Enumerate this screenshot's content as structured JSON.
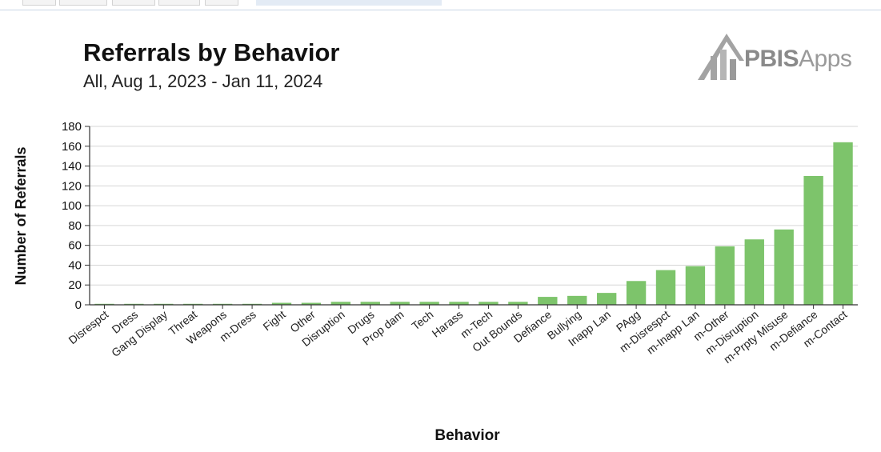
{
  "chart_data": {
    "type": "bar",
    "title": "Referrals by Behavior",
    "subtitle": "All, Aug 1, 2023 - Jan 11, 2024",
    "xlabel": "Behavior",
    "ylabel": "Number of Referrals",
    "ylim": [
      0,
      180
    ],
    "yticks": [
      0,
      20,
      40,
      60,
      80,
      100,
      120,
      140,
      160,
      180
    ],
    "grid": true,
    "bar_color": "#7dc46b",
    "categories": [
      "Disrespct",
      "Dress",
      "Gang Display",
      "Threat",
      "Weapons",
      "m-Dress",
      "Fight",
      "Other",
      "Disruption",
      "Drugs",
      "Prop dam",
      "Tech",
      "Harass",
      "m-Tech",
      "Out Bounds",
      "Defiance",
      "Bullying",
      "Inapp Lan",
      "PAgg",
      "m-Disrespct",
      "m-Inapp Lan",
      "m-Other",
      "m-Disruption",
      "m-Prpty Misuse",
      "m-Defiance",
      "m-Contact"
    ],
    "values": [
      1,
      1,
      1,
      1,
      1,
      1,
      2,
      2,
      3,
      3,
      3,
      3,
      3,
      3,
      3,
      8,
      9,
      12,
      24,
      35,
      39,
      59,
      66,
      76,
      130,
      164
    ]
  },
  "logo": {
    "text_bold": "PBIS",
    "text_light": "Apps",
    "color": "#8c8c8c"
  }
}
